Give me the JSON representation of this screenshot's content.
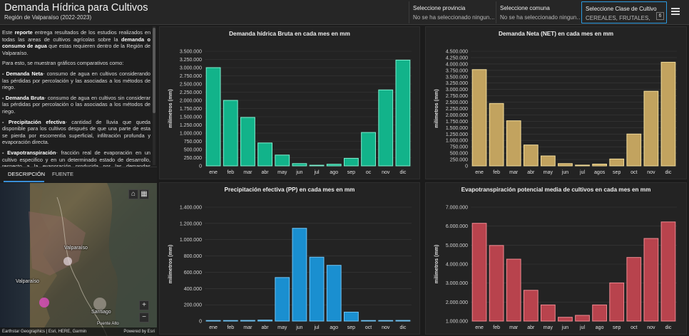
{
  "header": {
    "title": "Demanda Hídrica para Cultivos",
    "subtitle": "Región de Valparaíso (2022-2023)"
  },
  "filters": {
    "province": {
      "label": "Seleccione provincia",
      "value": "No se ha seleccionado ningun…"
    },
    "commune": {
      "label": "Seleccione comuna",
      "value": "No se ha seleccionado ningun…"
    },
    "crop": {
      "label": "Seleccione Clase de Cultivo",
      "value": "CEREALES, FRUTALES, HO…",
      "count": "6"
    }
  },
  "description": {
    "p1_a": "Este ",
    "p1_b": "reporte",
    "p1_c": " entrega resultados de los estudios realizados en todas las areas de cultivos agrícolas sobre la ",
    "p1_d": "demanda o consumo de agua",
    "p1_e": " que estas requieren dentro de la Región de Valparaíso.",
    "p2": "Para esto, se muestran gráficos comparativos como:",
    "items": [
      {
        "term": "- Demanda Neta",
        "text": "- consumo de agua en cultivos considerando las pérdidas por percolación y las asociadas a los métodos de riego."
      },
      {
        "term": "- Demanda Bruta",
        "text": "- consumo de agua en cultivos sin considerar las pérdidas por percolación o las asociadas a los métodos de riego."
      },
      {
        "term": "- Precipitación efectiva",
        "text": "- cantidad de lluvia que queda disponible para los cultivos después de que una parte de esta se pierda por escorrentía superficial, infiltración profunda y evaporación directa."
      },
      {
        "term": "- Evapotranspiración",
        "text": "- fracción real de evaporación en un cultivo especifico y en un determinado estado de desarrollo, respecto a la evaporación producida por las demandas atmosféricas y sin"
      }
    ]
  },
  "tabs": {
    "description": "DESCRIPCIÓN",
    "source": "FUENTE"
  },
  "map": {
    "labels": {
      "valparaiso_region": "Valparaíso",
      "valparaiso_city": "Valparaíso",
      "santiago": "Santiago",
      "puente_alto": "Puente Alto"
    },
    "attribution_left": "Earthstar Geographics | Esri, HERE, Garmin",
    "attribution_right": "Powered by Esri",
    "zoom_in": "+",
    "zoom_out": "−"
  },
  "chart_data": [
    {
      "id": "bruta",
      "type": "bar",
      "title": "Demanda hídrica Bruta en cada mes en mm",
      "ylabel": "milímetros (mm)",
      "categories": [
        "ene",
        "feb",
        "mar",
        "abr",
        "may",
        "jun",
        "jul",
        "ago",
        "sep",
        "oc",
        "nov",
        "dic"
      ],
      "values": [
        3000000,
        2000000,
        1480000,
        700000,
        330000,
        70000,
        20000,
        50000,
        230000,
        1020000,
        2320000,
        3230000
      ],
      "ylim": [
        0,
        3500000
      ],
      "yticks": [
        "0",
        "250.000",
        "500.000",
        "750.000",
        "1.000.000",
        "1.250.000",
        "1.500.000",
        "1.750.000",
        "2.000.000",
        "2.250.000",
        "2.500.000",
        "2.750.000",
        "3.000.000",
        "3.250.000",
        "3.500.000"
      ],
      "color": "#12b38a",
      "edge": "#7df0cf"
    },
    {
      "id": "neta",
      "type": "bar",
      "title": "Demanda Neta (NET) en cada mes en mm",
      "ylabel": "milímetros (mm)",
      "categories": [
        "ene",
        "feb",
        "mar",
        "abr",
        "may",
        "jun",
        "jul",
        "agos",
        "sep",
        "oct",
        "nov",
        "dic"
      ],
      "values": [
        3780000,
        2450000,
        1770000,
        820000,
        390000,
        90000,
        30000,
        70000,
        270000,
        1250000,
        2930000,
        4070000
      ],
      "ylim": [
        0,
        4500000
      ],
      "yticks": [
        "0",
        "250.000",
        "500.000",
        "750.000",
        "1.000.000",
        "1.250.000",
        "1.500.000",
        "1.750.000",
        "2.000.000",
        "2.250.000",
        "2.500.000",
        "2.750.000",
        "3.000.000",
        "3.250.000",
        "3.500.000",
        "3.750.000",
        "4.000.000",
        "4.250.000",
        "4.500.000"
      ],
      "color": "#c2a35f",
      "edge": "#f2dc9a"
    },
    {
      "id": "pp",
      "type": "bar",
      "title": "Precipitación efectiva (PP) en cada mes en mm",
      "ylabel": "milímetros (mm)",
      "categories": [
        "ene",
        "feb",
        "mar",
        "abr",
        "may",
        "jun",
        "jul",
        "ago",
        "sep",
        "oct",
        "nov",
        "dic"
      ],
      "values": [
        5000,
        5000,
        8000,
        12000,
        535000,
        1140000,
        785000,
        685000,
        110000,
        6000,
        5000,
        8000
      ],
      "ylim": [
        0,
        1400000
      ],
      "yticks": [
        "0",
        "200.000",
        "400.000",
        "600.000",
        "800.000",
        "1.000.000",
        "1.200.000",
        "1.400.000"
      ],
      "color": "#1a8fd0",
      "edge": "#6fc4f5"
    },
    {
      "id": "evap",
      "type": "bar",
      "title": "Evapotranspiración potencial media de cultivos en cada mes en mm",
      "ylabel": "milímetros (mm)",
      "categories": [
        "ene",
        "feb",
        "mar",
        "abr",
        "may",
        "jun",
        "jul",
        "ago",
        "sep",
        "oct",
        "nov",
        "dic"
      ],
      "values": [
        6150000,
        4980000,
        4260000,
        2620000,
        1850000,
        1200000,
        1300000,
        1850000,
        3010000,
        4350000,
        5350000,
        6220000
      ],
      "ylim": [
        1000000,
        7000000
      ],
      "yticks": [
        "1.000.000",
        "2.000.000",
        "3.000.000",
        "4.000.000",
        "5.000.000",
        "6.000.000",
        "7.000.000"
      ],
      "color": "#b8434d",
      "edge": "#ef8890"
    }
  ]
}
